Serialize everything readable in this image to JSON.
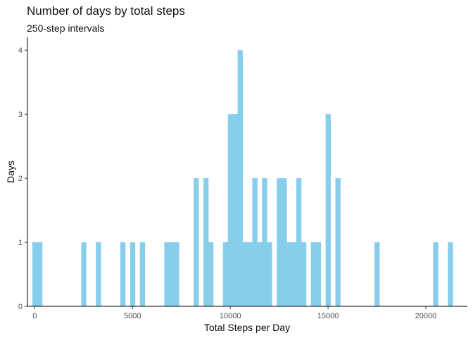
{
  "chart_data": {
    "type": "bar",
    "title": "Number of days by total steps",
    "subtitle": "250-step intervals",
    "xlabel": "Total Steps per Day",
    "ylabel": "Days",
    "bin_width": 250,
    "xlim": [
      -375,
      22125
    ],
    "ylim": [
      0,
      4.2
    ],
    "x_ticks": [
      0,
      5000,
      10000,
      15000,
      20000
    ],
    "x_tick_labels": [
      "0",
      "5000",
      "10000",
      "15000",
      "20000"
    ],
    "y_ticks": [
      0,
      1,
      2,
      3,
      4
    ],
    "y_tick_labels": [
      "0",
      "1",
      "2",
      "3",
      "4"
    ],
    "color": "#87CEEB",
    "bins": [
      {
        "x": 0,
        "count": 1
      },
      {
        "x": 250,
        "count": 1
      },
      {
        "x": 2500,
        "count": 1
      },
      {
        "x": 3250,
        "count": 1
      },
      {
        "x": 4500,
        "count": 1
      },
      {
        "x": 5000,
        "count": 1
      },
      {
        "x": 5500,
        "count": 1
      },
      {
        "x": 6750,
        "count": 1
      },
      {
        "x": 7000,
        "count": 1
      },
      {
        "x": 7250,
        "count": 1
      },
      {
        "x": 8250,
        "count": 2
      },
      {
        "x": 8750,
        "count": 2
      },
      {
        "x": 9000,
        "count": 1
      },
      {
        "x": 9750,
        "count": 1
      },
      {
        "x": 10000,
        "count": 3
      },
      {
        "x": 10250,
        "count": 3
      },
      {
        "x": 10500,
        "count": 4
      },
      {
        "x": 10750,
        "count": 1
      },
      {
        "x": 11000,
        "count": 1
      },
      {
        "x": 11250,
        "count": 2
      },
      {
        "x": 11500,
        "count": 1
      },
      {
        "x": 11750,
        "count": 2
      },
      {
        "x": 12000,
        "count": 1
      },
      {
        "x": 12500,
        "count": 2
      },
      {
        "x": 12750,
        "count": 2
      },
      {
        "x": 13000,
        "count": 1
      },
      {
        "x": 13250,
        "count": 1
      },
      {
        "x": 13500,
        "count": 2
      },
      {
        "x": 13750,
        "count": 1
      },
      {
        "x": 14250,
        "count": 1
      },
      {
        "x": 14500,
        "count": 1
      },
      {
        "x": 15000,
        "count": 3
      },
      {
        "x": 15500,
        "count": 2
      },
      {
        "x": 17500,
        "count": 1
      },
      {
        "x": 20500,
        "count": 1
      },
      {
        "x": 21250,
        "count": 1
      }
    ]
  }
}
